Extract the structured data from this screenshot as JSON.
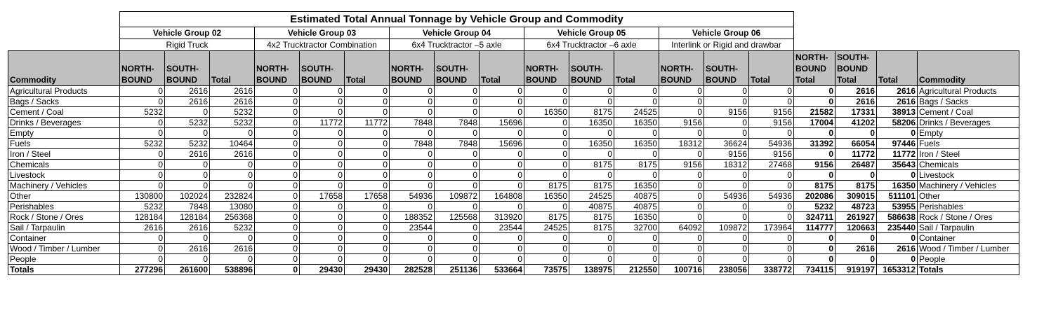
{
  "title": "Estimated Total Annual Tonnage by Vehicle Group and Commodity",
  "groups": [
    {
      "name": "Vehicle Group 02",
      "type": "Rigid Truck"
    },
    {
      "name": "Vehicle Group 03",
      "type": "4x2 Trucktractor Combination"
    },
    {
      "name": "Vehicle Group 04",
      "type": "6x4 Trucktractor –5 axle"
    },
    {
      "name": "Vehicle Group 05",
      "type": "6x4 Trucktractor –6 axle"
    },
    {
      "name": "Vehicle Group 06",
      "type": "Interlink or Rigid and drawbar"
    }
  ],
  "headers": {
    "commodity": "Commodity",
    "north": "NORTH-BOUND",
    "south": "SOUTH-BOUND",
    "total": "Total",
    "north_total": "NORTH-BOUND Total",
    "south_total": "SOUTH-BOUND Total",
    "grand_total": "Total",
    "commodity_right": "Commodity"
  },
  "rows": [
    {
      "label": "Agricultural Products",
      "cells": [
        "0",
        "2616",
        "2616",
        "0",
        "0",
        "0",
        "0",
        "0",
        "0",
        "0",
        "0",
        "0",
        "0",
        "0",
        "0",
        "0",
        "2616",
        "2616"
      ]
    },
    {
      "label": "Bags / Sacks",
      "cells": [
        "0",
        "2616",
        "2616",
        "0",
        "0",
        "0",
        "0",
        "0",
        "0",
        "0",
        "0",
        "0",
        "0",
        "0",
        "0",
        "0",
        "2616",
        "2616"
      ]
    },
    {
      "label": "Cement / Coal",
      "cells": [
        "5232",
        "0",
        "5232",
        "0",
        "0",
        "0",
        "0",
        "0",
        "0",
        "16350",
        "8175",
        "24525",
        "0",
        "9156",
        "9156",
        "21582",
        "17331",
        "38913"
      ]
    },
    {
      "label": "Drinks / Beverages",
      "cells": [
        "0",
        "5232",
        "5232",
        "0",
        "11772",
        "11772",
        "7848",
        "7848",
        "15696",
        "0",
        "16350",
        "16350",
        "9156",
        "0",
        "9156",
        "17004",
        "41202",
        "58206"
      ]
    },
    {
      "label": "Empty",
      "cells": [
        "0",
        "0",
        "0",
        "0",
        "0",
        "0",
        "0",
        "0",
        "0",
        "0",
        "0",
        "0",
        "0",
        "0",
        "0",
        "0",
        "0",
        "0"
      ]
    },
    {
      "label": "Fuels",
      "cells": [
        "5232",
        "5232",
        "10464",
        "0",
        "0",
        "0",
        "7848",
        "7848",
        "15696",
        "0",
        "16350",
        "16350",
        "18312",
        "36624",
        "54936",
        "31392",
        "66054",
        "97446"
      ]
    },
    {
      "label": "Iron / Steel",
      "cells": [
        "0",
        "2616",
        "2616",
        "0",
        "0",
        "0",
        "0",
        "0",
        "0",
        "0",
        "0",
        "0",
        "0",
        "9156",
        "9156",
        "0",
        "11772",
        "11772"
      ]
    },
    {
      "label": "Chemicals",
      "cells": [
        "0",
        "0",
        "0",
        "0",
        "0",
        "0",
        "0",
        "0",
        "0",
        "0",
        "8175",
        "8175",
        "9156",
        "18312",
        "27468",
        "9156",
        "26487",
        "35643"
      ]
    },
    {
      "label": "Livestock",
      "cells": [
        "0",
        "0",
        "0",
        "0",
        "0",
        "0",
        "0",
        "0",
        "0",
        "0",
        "0",
        "0",
        "0",
        "0",
        "0",
        "0",
        "0",
        "0"
      ]
    },
    {
      "label": "Machinery / Vehicles",
      "cells": [
        "0",
        "0",
        "0",
        "0",
        "0",
        "0",
        "0",
        "0",
        "0",
        "8175",
        "8175",
        "16350",
        "0",
        "0",
        "0",
        "8175",
        "8175",
        "16350"
      ]
    },
    {
      "label": "Other",
      "cells": [
        "130800",
        "102024",
        "232824",
        "0",
        "17658",
        "17658",
        "54936",
        "109872",
        "164808",
        "16350",
        "24525",
        "40875",
        "0",
        "54936",
        "54936",
        "202086",
        "309015",
        "511101"
      ]
    },
    {
      "label": "Perishables",
      "cells": [
        "5232",
        "7848",
        "13080",
        "0",
        "0",
        "0",
        "0",
        "0",
        "0",
        "0",
        "40875",
        "40875",
        "0",
        "0",
        "0",
        "5232",
        "48723",
        "53955"
      ]
    },
    {
      "label": "Rock / Stone / Ores",
      "cells": [
        "128184",
        "128184",
        "256368",
        "0",
        "0",
        "0",
        "188352",
        "125568",
        "313920",
        "8175",
        "8175",
        "16350",
        "0",
        "0",
        "0",
        "324711",
        "261927",
        "586638"
      ]
    },
    {
      "label": "Sail / Tarpaulin",
      "cells": [
        "2616",
        "2616",
        "5232",
        "0",
        "0",
        "0",
        "23544",
        "0",
        "23544",
        "24525",
        "8175",
        "32700",
        "64092",
        "109872",
        "173964",
        "114777",
        "120663",
        "235440"
      ]
    },
    {
      "label": "Container",
      "cells": [
        "0",
        "0",
        "0",
        "0",
        "0",
        "0",
        "0",
        "0",
        "0",
        "0",
        "0",
        "0",
        "0",
        "0",
        "0",
        "0",
        "0",
        "0"
      ]
    },
    {
      "label": "Wood / Timber / Lumber",
      "cells": [
        "0",
        "2616",
        "2616",
        "0",
        "0",
        "0",
        "0",
        "0",
        "0",
        "0",
        "0",
        "0",
        "0",
        "0",
        "0",
        "0",
        "2616",
        "2616"
      ]
    },
    {
      "label": "People",
      "cells": [
        "0",
        "0",
        "0",
        "0",
        "0",
        "0",
        "0",
        "0",
        "0",
        "0",
        "0",
        "0",
        "0",
        "0",
        "0",
        "0",
        "0",
        "0"
      ]
    }
  ],
  "totals": {
    "label": "Totals",
    "cells": [
      "277296",
      "261600",
      "538896",
      "0",
      "29430",
      "29430",
      "282528",
      "251136",
      "533664",
      "73575",
      "138975",
      "212550",
      "100716",
      "238056",
      "338772",
      "734115",
      "919197",
      "1653312"
    ]
  }
}
